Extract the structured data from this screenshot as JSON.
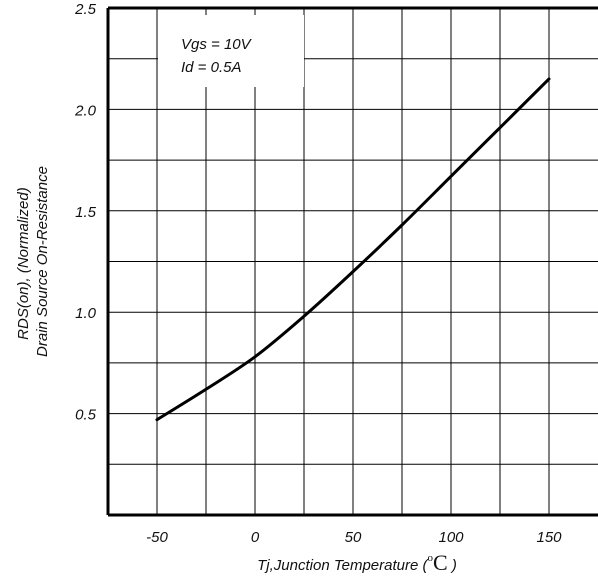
{
  "chart_data": {
    "type": "line",
    "xlabel_prefix": "Tj,Junction Temperature (",
    "xlabel_degree": "o",
    "xlabel_unit": "C",
    "xlabel_suffix": " )",
    "ylabel_line1": "RDS(on), (Normalized)",
    "ylabel_line2": "Drain Source On-Resistance",
    "xlim": [
      -75,
      175
    ],
    "ylim": [
      0,
      2.5
    ],
    "x_ticks": [
      -50,
      0,
      50,
      100,
      150
    ],
    "x_tick_labels": [
      "-50",
      "0",
      "50",
      "100",
      "150"
    ],
    "y_ticks": [
      0.5,
      1.0,
      1.5,
      2.0,
      2.5
    ],
    "y_tick_labels": [
      "0.5",
      "1.0",
      "1.5",
      "2.0",
      "2.5"
    ],
    "grid": true,
    "annotation_lines": [
      "Vgs = 10V",
      "Id = 0.5A"
    ],
    "series": [
      {
        "x": [
          -50,
          -25,
          0,
          25,
          50,
          75,
          100,
          125,
          150
        ],
        "y": [
          0.47,
          0.62,
          0.78,
          0.98,
          1.2,
          1.43,
          1.67,
          1.91,
          2.15
        ]
      }
    ]
  }
}
